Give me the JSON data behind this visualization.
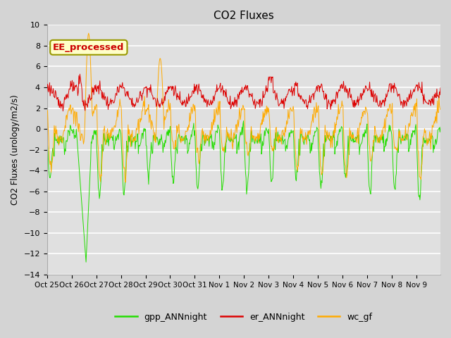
{
  "title": "CO2 Fluxes",
  "ylabel": "CO2 Fluxes (urology/m2/s)",
  "ylim": [
    -14,
    10
  ],
  "yticks": [
    -14,
    -12,
    -10,
    -8,
    -6,
    -4,
    -2,
    0,
    2,
    4,
    6,
    8,
    10
  ],
  "annotation_text": "EE_processed",
  "annotation_bg": "#ffffc8",
  "annotation_border": "#999900",
  "fig_bg": "#d4d4d4",
  "plot_bg": "#e0e0e0",
  "grid_color": "#ffffff",
  "color_gpp": "#22dd00",
  "color_er": "#dd0000",
  "color_wc": "#ffaa00",
  "legend_labels": [
    "gpp_ANNnight",
    "er_ANNnight",
    "wc_gf"
  ],
  "x_tick_labels": [
    "Oct 25",
    "Oct 26",
    "Oct 27",
    "Oct 28",
    "Oct 29",
    "Oct 30",
    "Oct 31",
    "Nov 1",
    "Nov 2",
    "Nov 3",
    "Nov 4",
    "Nov 5",
    "Nov 6",
    "Nov 7",
    "Nov 8",
    "Nov 9"
  ],
  "figsize": [
    6.4,
    4.8
  ],
  "dpi": 100
}
